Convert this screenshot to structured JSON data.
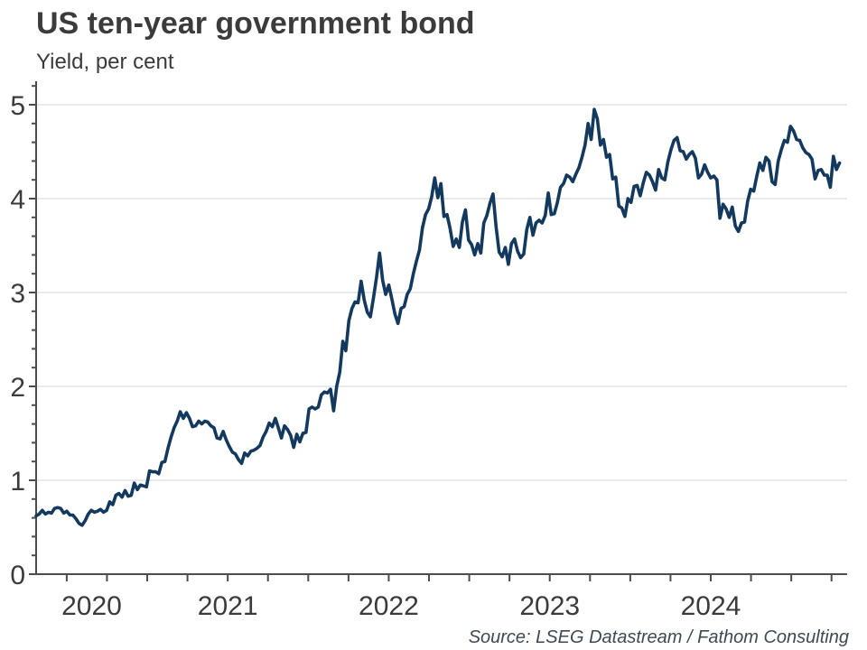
{
  "title": "US ten-year government bond",
  "subtitle": "Yield, per cent",
  "source": "Source: LSEG Datastream / Fathom Consulting",
  "colors": {
    "line": "#14395e",
    "grid": "#d9dce0",
    "axis": "#4c4d4f",
    "tick_text": "#3b3b3b",
    "title_text": "#3b3b3b",
    "source_text": "#3d4a52",
    "background": "#ffffff"
  },
  "chart_data": {
    "type": "line",
    "title": "US ten-year government bond",
    "ylabel": "Yield, per cent",
    "xlabel": "",
    "legend": "none",
    "grid": "horizontal major gridlines only",
    "xlim": [
      2020.31,
      2025.347
    ],
    "ylim": [
      0,
      5.25
    ],
    "y_major_ticks": [
      0,
      1,
      2,
      3,
      4,
      5
    ],
    "y_minor_step": 0.2,
    "x_minor_step_years": 0.25,
    "x_year_labels": [
      "2020",
      "2021",
      "2022",
      "2023",
      "2024"
    ],
    "x_year_label_centers": [
      2020.655,
      2021.5,
      2022.5,
      2023.5,
      2024.5
    ],
    "series_name": "US 10-year government bond yield",
    "x_start": 2020.31,
    "x_step_years": 0.019046,
    "values": [
      0.62,
      0.64,
      0.68,
      0.64,
      0.66,
      0.65,
      0.7,
      0.71,
      0.7,
      0.65,
      0.67,
      0.63,
      0.63,
      0.59,
      0.54,
      0.52,
      0.57,
      0.64,
      0.68,
      0.66,
      0.67,
      0.69,
      0.66,
      0.68,
      0.77,
      0.74,
      0.84,
      0.86,
      0.82,
      0.89,
      0.83,
      0.84,
      0.97,
      0.9,
      0.95,
      0.94,
      0.93,
      1.1,
      1.09,
      1.09,
      1.07,
      1.19,
      1.2,
      1.34,
      1.46,
      1.56,
      1.63,
      1.73,
      1.66,
      1.72,
      1.66,
      1.57,
      1.58,
      1.63,
      1.6,
      1.63,
      1.62,
      1.58,
      1.56,
      1.45,
      1.44,
      1.52,
      1.43,
      1.36,
      1.3,
      1.28,
      1.22,
      1.18,
      1.29,
      1.26,
      1.31,
      1.32,
      1.34,
      1.37,
      1.46,
      1.52,
      1.61,
      1.57,
      1.66,
      1.56,
      1.45,
      1.58,
      1.54,
      1.48,
      1.35,
      1.49,
      1.41,
      1.5,
      1.51,
      1.76,
      1.78,
      1.76,
      1.78,
      1.91,
      1.94,
      1.93,
      1.97,
      1.74,
      2.0,
      2.15,
      2.48,
      2.38,
      2.7,
      2.83,
      2.9,
      2.89,
      3.12,
      2.92,
      2.79,
      2.74,
      2.94,
      3.16,
      3.42,
      3.13,
      2.98,
      3.08,
      2.93,
      2.77,
      2.67,
      2.83,
      2.85,
      2.98,
      3.04,
      3.2,
      3.33,
      3.45,
      3.69,
      3.83,
      3.89,
      4.02,
      4.22,
      4.01,
      4.16,
      3.81,
      3.83,
      3.68,
      3.49,
      3.57,
      3.48,
      3.75,
      3.88,
      3.56,
      3.51,
      3.4,
      3.52,
      3.42,
      3.74,
      3.82,
      3.95,
      4.05,
      3.7,
      3.43,
      3.38,
      3.48,
      3.3,
      3.52,
      3.57,
      3.44,
      3.37,
      3.41,
      3.67,
      3.8,
      3.61,
      3.74,
      3.77,
      3.74,
      3.82,
      4.06,
      3.83,
      3.84,
      3.96,
      4.12,
      4.16,
      4.25,
      4.23,
      4.18,
      4.26,
      4.33,
      4.44,
      4.57,
      4.8,
      4.63,
      4.95,
      4.85,
      4.57,
      4.63,
      4.44,
      4.47,
      4.21,
      4.23,
      3.92,
      3.9,
      3.81,
      4.0,
      3.96,
      4.13,
      4.14,
      4.03,
      4.17,
      4.28,
      4.25,
      4.18,
      4.09,
      4.31,
      4.22,
      4.2,
      4.39,
      4.52,
      4.62,
      4.65,
      4.51,
      4.5,
      4.42,
      4.47,
      4.5,
      4.43,
      4.22,
      4.26,
      4.36,
      4.28,
      4.22,
      4.24,
      4.2,
      3.79,
      3.94,
      3.89,
      3.8,
      3.91,
      3.71,
      3.65,
      3.74,
      3.75,
      3.97,
      4.1,
      4.08,
      4.24,
      4.38,
      4.3,
      4.44,
      4.4,
      4.18,
      4.15,
      4.4,
      4.52,
      4.62,
      4.6,
      4.77,
      4.72,
      4.63,
      4.62,
      4.54,
      4.49,
      4.47,
      4.42,
      4.21,
      4.3,
      4.31,
      4.25,
      4.25,
      4.12,
      4.45,
      4.31,
      4.38
    ]
  }
}
